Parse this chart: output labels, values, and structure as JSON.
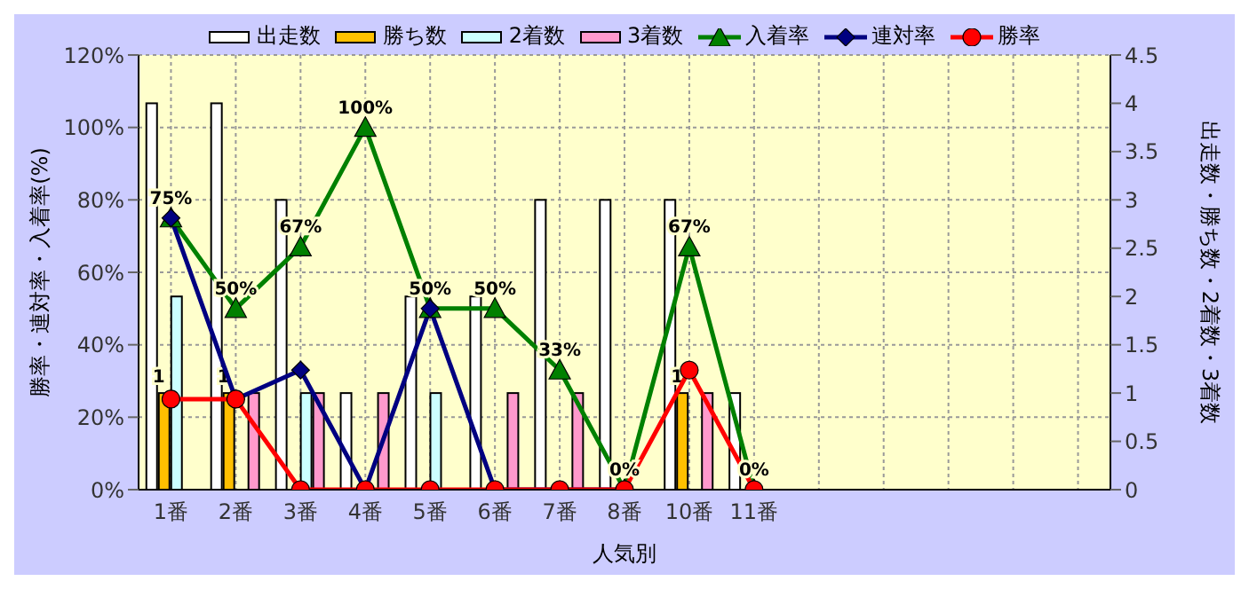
{
  "chart_data": {
    "type": "bar",
    "xlabel": "人気別",
    "ylabel": "勝率・連対率・入着率(%)",
    "y2label": "出走数・勝ち数・2着数・3着数",
    "categories": [
      "1番",
      "2番",
      "3番",
      "4番",
      "5番",
      "6番",
      "7番",
      "8番",
      "10番",
      "11番",
      null,
      null,
      null,
      null,
      null
    ],
    "series": [
      {
        "name": "出走数",
        "axis": "y2",
        "color": "#ffffff",
        "values": [
          4,
          4,
          3,
          1,
          2,
          2,
          3,
          3,
          3,
          1,
          null,
          null,
          null,
          null,
          null
        ]
      },
      {
        "name": "勝ち数",
        "axis": "y2",
        "color": "#ffc000",
        "values": [
          1,
          1,
          0,
          0,
          0,
          0,
          0,
          0,
          1,
          0,
          null,
          null,
          null,
          null,
          null
        ],
        "value_labels": [
          "1",
          "1",
          null,
          null,
          null,
          null,
          null,
          null,
          "1",
          null,
          null,
          null,
          null,
          null,
          null
        ]
      },
      {
        "name": "2着数",
        "axis": "y2",
        "color": "#ccffff",
        "values": [
          2,
          0,
          1,
          0,
          1,
          0,
          0,
          0,
          0,
          0,
          null,
          null,
          null,
          null,
          null
        ]
      },
      {
        "name": "3着数",
        "axis": "y2",
        "color": "#ff99cc",
        "values": [
          0,
          1,
          1,
          1,
          0,
          1,
          1,
          0,
          1,
          0,
          null,
          null,
          null,
          null,
          null
        ]
      },
      {
        "name": "入着率",
        "type": "line",
        "axis": "y",
        "color": "#008000",
        "marker": "triangle",
        "values": [
          75,
          50,
          67,
          100,
          50,
          50,
          33,
          0,
          67,
          0,
          null,
          null,
          null,
          null,
          null
        ],
        "value_labels": [
          "75%",
          "50%",
          "67%",
          "100%",
          "50%",
          "50%",
          "33%",
          "0%",
          "67%",
          "0%",
          null,
          null,
          null,
          null,
          null
        ]
      },
      {
        "name": "連対率",
        "type": "line",
        "axis": "y",
        "color": "#000080",
        "marker": "diamond",
        "values": [
          75,
          25,
          33,
          0,
          50,
          0,
          0,
          0,
          null,
          null,
          null,
          null,
          null,
          null,
          null
        ]
      },
      {
        "name": "勝率",
        "type": "line",
        "axis": "y",
        "color": "#ff0000",
        "marker": "circle",
        "values": [
          25,
          25,
          0,
          0,
          0,
          0,
          0,
          0,
          33,
          0,
          null,
          null,
          null,
          null,
          null
        ]
      }
    ],
    "ylim": [
      0,
      120
    ],
    "yticks": [
      {
        "value": 0,
        "label": "0%"
      },
      {
        "value": 20,
        "label": "20%"
      },
      {
        "value": 40,
        "label": "40%"
      },
      {
        "value": 60,
        "label": "60%"
      },
      {
        "value": 80,
        "label": "80%"
      },
      {
        "value": 100,
        "label": "100%"
      },
      {
        "value": 120,
        "label": "120%"
      }
    ],
    "y2lim": [
      0,
      4.5
    ],
    "y2ticks": [
      0,
      0.5,
      1,
      1.5,
      2,
      2.5,
      3,
      3.5,
      4,
      4.5
    ],
    "grid": true,
    "legend": "top",
    "line_style": "solid"
  }
}
